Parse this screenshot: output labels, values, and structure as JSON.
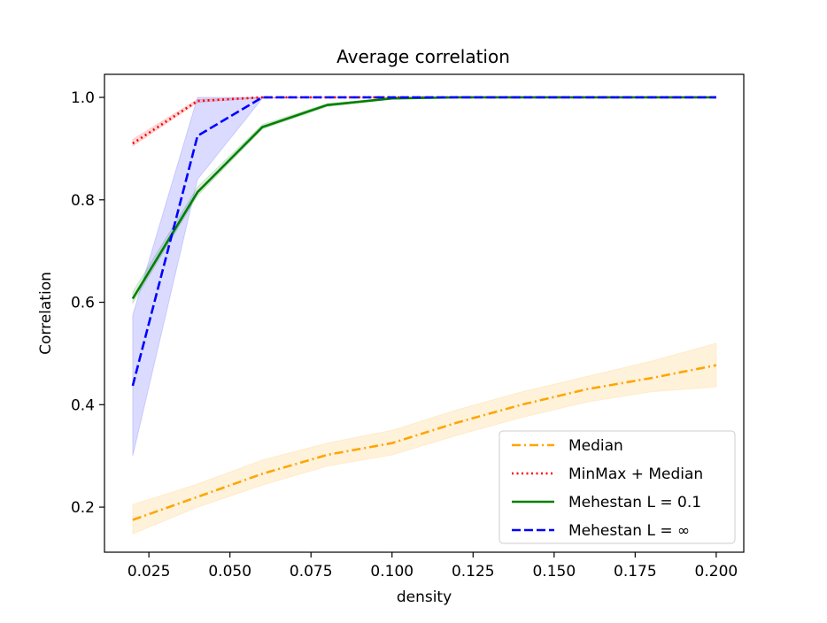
{
  "chart_data": {
    "type": "line",
    "title": "Average correlation",
    "xlabel": "density",
    "ylabel": "Correlation",
    "xlim": [
      0.0113,
      0.2085
    ],
    "ylim": [
      0.112,
      1.045
    ],
    "xticks": [
      0.025,
      0.05,
      0.075,
      0.1,
      0.125,
      0.15,
      0.175,
      0.2
    ],
    "xtick_labels": [
      "0.025",
      "0.050",
      "0.075",
      "0.100",
      "0.125",
      "0.150",
      "0.175",
      "0.200"
    ],
    "yticks": [
      0.2,
      0.4,
      0.6,
      0.8,
      1.0
    ],
    "ytick_labels": [
      "0.2",
      "0.4",
      "0.6",
      "0.8",
      "1.0"
    ],
    "grid": false,
    "legend_position": "lower-right",
    "series": [
      {
        "name": "Median",
        "color": "#ffa500",
        "dash": "dashdot",
        "x": [
          0.02,
          0.04,
          0.06,
          0.08,
          0.1,
          0.12,
          0.14,
          0.16,
          0.18,
          0.2
        ],
        "values": [
          0.175,
          0.22,
          0.265,
          0.302,
          0.325,
          0.365,
          0.4,
          0.43,
          0.452,
          0.477
        ],
        "lower": [
          0.148,
          0.2,
          0.243,
          0.28,
          0.302,
          0.34,
          0.375,
          0.405,
          0.425,
          0.435
        ],
        "upper": [
          0.205,
          0.245,
          0.292,
          0.325,
          0.35,
          0.39,
          0.425,
          0.455,
          0.485,
          0.52
        ]
      },
      {
        "name": "MinMax + Median",
        "color": "#ff0000",
        "dash": "dotted",
        "x": [
          0.02,
          0.04,
          0.06,
          0.08,
          0.1,
          0.12,
          0.14,
          0.16,
          0.18,
          0.2
        ],
        "values": [
          0.91,
          0.993,
          1.0,
          1.0,
          1.0,
          1.0,
          1.0,
          1.0,
          1.0,
          1.0
        ],
        "lower": [
          0.905,
          0.99,
          0.999,
          1.0,
          1.0,
          1.0,
          1.0,
          1.0,
          1.0,
          1.0
        ],
        "upper": [
          0.918,
          0.996,
          1.0,
          1.0,
          1.0,
          1.0,
          1.0,
          1.0,
          1.0,
          1.0
        ]
      },
      {
        "name": "Mehestan  L = 0.1",
        "color": "#008000",
        "dash": "solid",
        "x": [
          0.02,
          0.04,
          0.06,
          0.08,
          0.1,
          0.12,
          0.14,
          0.16,
          0.18,
          0.2
        ],
        "values": [
          0.607,
          0.815,
          0.942,
          0.985,
          0.998,
          1.0,
          1.0,
          1.0,
          1.0,
          1.0
        ],
        "lower": [
          0.598,
          0.808,
          0.938,
          0.982,
          0.997,
          1.0,
          1.0,
          1.0,
          1.0,
          1.0
        ],
        "upper": [
          0.62,
          0.825,
          0.947,
          0.988,
          0.999,
          1.0,
          1.0,
          1.0,
          1.0,
          1.0
        ]
      },
      {
        "name": "Mehestan  L = ∞",
        "color": "#0000ff",
        "dash": "dashed",
        "x": [
          0.02,
          0.04,
          0.06,
          0.08,
          0.1,
          0.12,
          0.14,
          0.16,
          0.18,
          0.2
        ],
        "values": [
          0.437,
          0.925,
          1.0,
          1.0,
          1.0,
          1.0,
          1.0,
          1.0,
          1.0,
          1.0
        ],
        "lower": [
          0.3,
          0.84,
          0.998,
          1.0,
          1.0,
          1.0,
          1.0,
          1.0,
          1.0,
          1.0
        ],
        "upper": [
          0.575,
          1.0,
          1.0,
          1.0,
          1.0,
          1.0,
          1.0,
          1.0,
          1.0,
          1.0
        ]
      }
    ]
  }
}
